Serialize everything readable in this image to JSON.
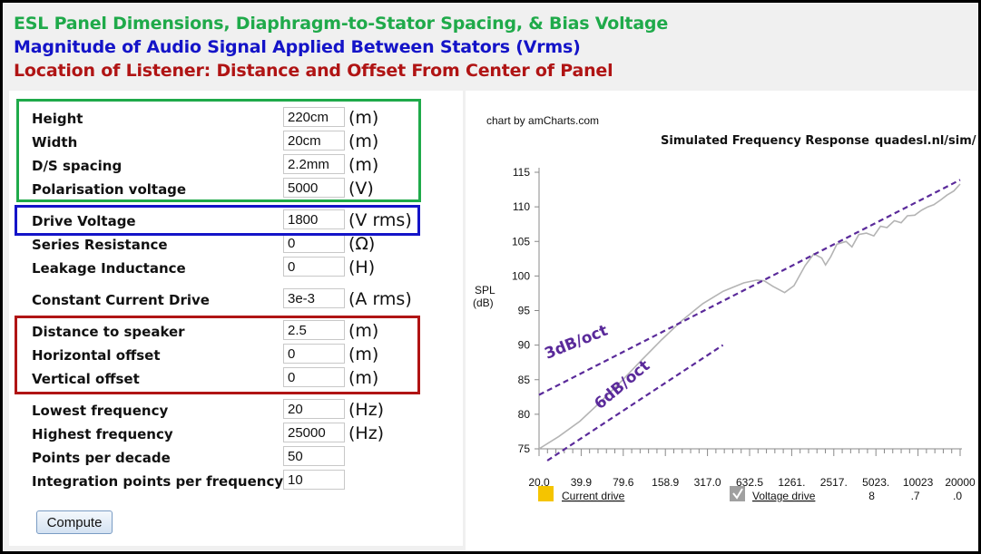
{
  "headings": {
    "h1": "ESL Panel Dimensions, Diaphragm-to-Stator Spacing, & Bias Voltage",
    "h2": "Magnitude of Audio Signal Applied Between Stators (Vrms)",
    "h3": "Location of Listener: Distance and Offset From Center of Panel"
  },
  "colors": {
    "green": "#1faa4a",
    "blue": "#1414c8",
    "red": "#b01414",
    "annotation": "#5a2a9a"
  },
  "form": {
    "height": {
      "label": "Height",
      "value": "220cm",
      "unit": "(m)"
    },
    "width": {
      "label": "Width",
      "value": "20cm",
      "unit": "(m)"
    },
    "ds_spacing": {
      "label": "D/S spacing",
      "value": "2.2mm",
      "unit": "(m)"
    },
    "polarisation": {
      "label": "Polarisation voltage",
      "value": "5000",
      "unit": "(V)"
    },
    "drive_voltage": {
      "label": "Drive Voltage",
      "value": "1800",
      "unit": "(V rms)"
    },
    "series_resistance": {
      "label": "Series Resistance",
      "value": "0",
      "unit": "(Ω)"
    },
    "leakage_inductance": {
      "label": "Leakage Inductance",
      "value": "0",
      "unit": "(H)"
    },
    "constant_current": {
      "label": "Constant Current Drive",
      "value": "3e-3",
      "unit": "(A rms)"
    },
    "distance": {
      "label": "Distance to speaker",
      "value": "2.5",
      "unit": "(m)"
    },
    "h_offset": {
      "label": "Horizontal offset",
      "value": "0",
      "unit": "(m)"
    },
    "v_offset": {
      "label": "Vertical offset",
      "value": "0",
      "unit": "(m)"
    },
    "lowest_freq": {
      "label": "Lowest frequency",
      "value": "20",
      "unit": "(Hz)"
    },
    "highest_freq": {
      "label": "Highest frequency",
      "value": "25000",
      "unit": "(Hz)"
    },
    "points_decade": {
      "label": "Points per decade",
      "value": "50",
      "unit": ""
    },
    "integration_points": {
      "label": "Integration points per frequency",
      "value": "10",
      "unit": ""
    },
    "compute_label": "Compute"
  },
  "chart": {
    "credit": "chart by amCharts.com",
    "url": "quadesl.nl/sim/",
    "annotation_3db": "3dB/oct",
    "annotation_6db": "6dB/oct"
  },
  "chart_data": {
    "type": "line",
    "title": "Simulated Frequency Response",
    "ylabel": "SPL (dB)",
    "ylabel_line1": "SPL",
    "ylabel_line2": "(dB)",
    "ylim": [
      75,
      115
    ],
    "y_ticks": [
      75,
      80,
      85,
      90,
      95,
      100,
      105,
      110,
      115
    ],
    "x_tick_labels": [
      "20.0",
      "39.9",
      "79.6",
      "158.9",
      "317.0",
      "632.5",
      "1261.",
      "2517.",
      "5023.",
      "10023",
      "20000"
    ],
    "x_tick_labels_line2": [
      "",
      "",
      "",
      "",
      "",
      "",
      "",
      "",
      "8",
      ".7",
      ".0"
    ],
    "x_log_range": [
      20,
      25000
    ],
    "legend": [
      {
        "name": "Current drive",
        "color": "#f5c400"
      },
      {
        "name": "Voltage drive",
        "color": "#a0a0a0"
      }
    ],
    "series": [
      {
        "name": "Voltage drive",
        "color": "#b4b4b4",
        "freq": [
          20,
          28,
          40,
          56,
          80,
          113,
          160,
          226,
          320,
          452,
          640,
          800,
          905,
          1050,
          1280,
          1500,
          1810,
          2100,
          2400,
          2560,
          2800,
          3100,
          3620,
          4000,
          4500,
          5120,
          5800,
          6500,
          7240,
          8200,
          9200,
          10240,
          11600,
          13000,
          14500,
          16000,
          18000,
          20000,
          22500,
          25000
        ],
        "spl": [
          75.0,
          76.8,
          79.0,
          81.7,
          84.7,
          87.8,
          90.8,
          93.6,
          96.0,
          97.8,
          99.0,
          99.4,
          99.3,
          98.5,
          97.6,
          98.6,
          101.5,
          103.2,
          102.6,
          101.6,
          102.8,
          104.6,
          105.0,
          104.2,
          106.0,
          106.2,
          105.8,
          107.2,
          107.0,
          108.0,
          107.7,
          108.7,
          108.8,
          109.5,
          110.0,
          110.3,
          111.0,
          111.7,
          112.3,
          113.3
        ]
      },
      {
        "name": "3dB/oct",
        "style": "dashed",
        "freq": [
          20,
          25000
        ],
        "spl": [
          82.8,
          113.9
        ]
      },
      {
        "name": "6dB/oct",
        "style": "dashed",
        "freq": [
          23,
          450
        ],
        "spl": [
          73.3,
          90.0
        ]
      }
    ]
  }
}
